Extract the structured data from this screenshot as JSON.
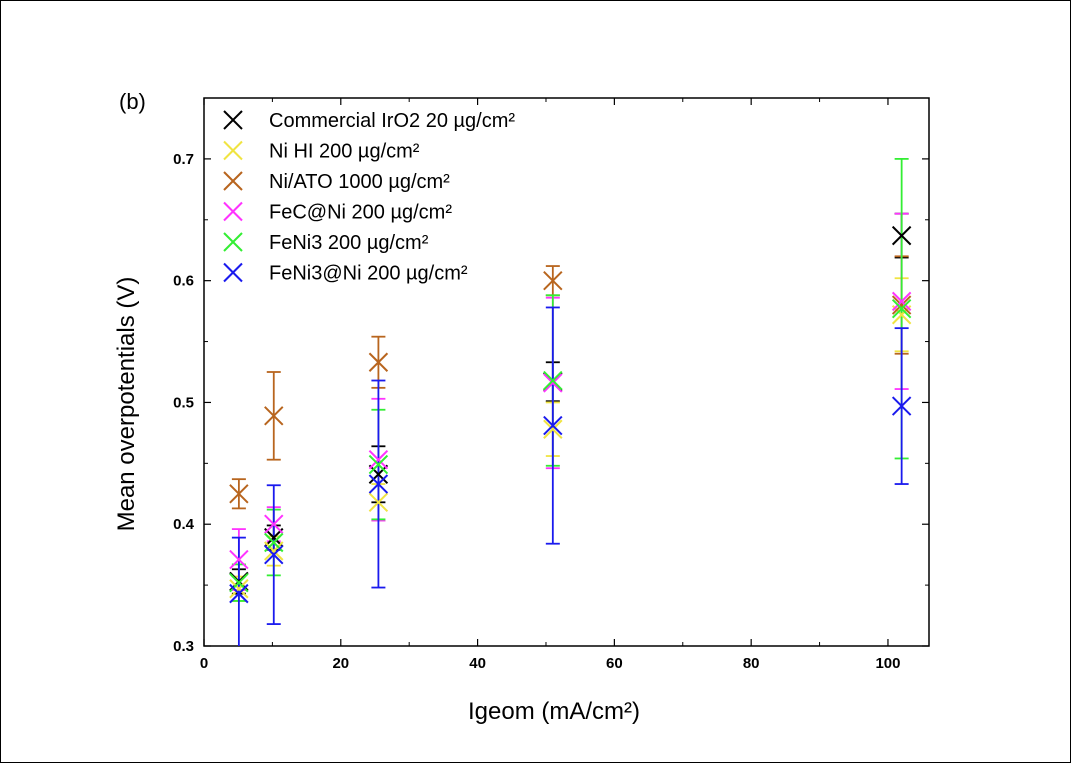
{
  "chart_data": {
    "type": "scatter",
    "panel_label": "(b)",
    "xlabel": "Igeom (mA/cm²)",
    "ylabel": "Mean overpotentials (V)",
    "xlim": [
      0,
      106
    ],
    "ylim": [
      0.3,
      0.75
    ],
    "x_ticks": [
      "0",
      "20",
      "40",
      "60",
      "80",
      "100"
    ],
    "y_ticks": [
      "0.3",
      "0.4",
      "0.5",
      "0.6",
      "0.7"
    ],
    "grid": false,
    "legend_position": "top-left",
    "marker": "x",
    "x": [
      5.1,
      10.2,
      25.5,
      51,
      102
    ],
    "series": [
      {
        "name": "Commercial IrO2 20 µg/cm²",
        "color": "#000000",
        "values": [
          0.353,
          0.389,
          0.441,
          0.517,
          0.637
        ],
        "errors": [
          0.01,
          0.01,
          0.023,
          0.016,
          0.018
        ]
      },
      {
        "name": "Ni HI 200 µg/cm²",
        "color": "#f0e442",
        "values": [
          0.347,
          0.378,
          0.418,
          0.478,
          0.572
        ],
        "errors": [
          0.01,
          0.012,
          0.015,
          0.022,
          0.03
        ]
      },
      {
        "name": "Ni/ATO 1000 µg/cm²",
        "color": "#b8651e",
        "values": [
          0.425,
          0.489,
          0.533,
          0.6,
          0.58
        ],
        "errors": [
          0.012,
          0.036,
          0.021,
          0.012,
          0.04
        ]
      },
      {
        "name": "FeC@Ni 200 µg/cm²",
        "color": "#ff33ff",
        "values": [
          0.371,
          0.4,
          0.453,
          0.516,
          0.583
        ],
        "errors": [
          0.025,
          0.014,
          0.05,
          0.07,
          0.072
        ]
      },
      {
        "name": "FeNi3 200 µg/cm²",
        "color": "#33ee33",
        "values": [
          0.352,
          0.385,
          0.449,
          0.518,
          0.577
        ],
        "errors": [
          0.015,
          0.027,
          0.045,
          0.07,
          0.123
        ]
      },
      {
        "name": "FeNi3@Ni 200 µg/cm²",
        "color": "#1a1aee",
        "values": [
          0.343,
          0.375,
          0.433,
          0.481,
          0.497
        ],
        "errors": [
          0.046,
          0.057,
          0.085,
          0.097,
          0.064
        ]
      }
    ]
  }
}
